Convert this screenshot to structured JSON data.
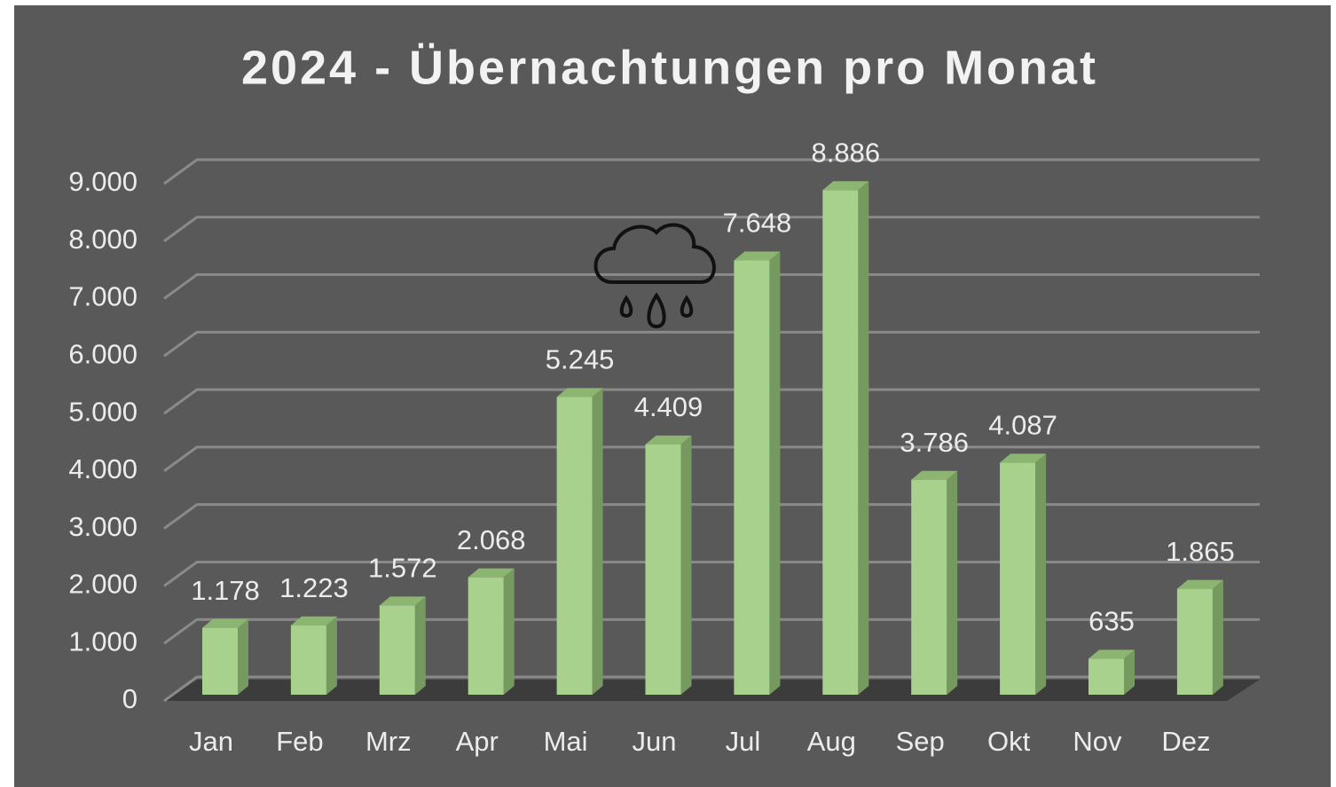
{
  "chart_data": {
    "type": "bar",
    "title": "2024 - Übernachtungen pro Monat",
    "categories": [
      "Jan",
      "Feb",
      "Mrz",
      "Apr",
      "Mai",
      "Jun",
      "Jul",
      "Aug",
      "Sep",
      "Okt",
      "Nov",
      "Dez"
    ],
    "values": [
      1178,
      1223,
      1572,
      2068,
      5245,
      4409,
      7648,
      8886,
      3786,
      4087,
      635,
      1865
    ],
    "value_labels": [
      "1.178",
      "1.223",
      "1.572",
      "2.068",
      "5.245",
      "4.409",
      "7.648",
      "8.886",
      "3.786",
      "4.087",
      "635",
      "1.865"
    ],
    "color": "#a9d18e",
    "ylim": [
      0,
      9000
    ],
    "yticks": [
      0,
      {
        "value": 1000,
        "label": "1.000"
      },
      {
        "value": 2000,
        "label": "2.000"
      },
      {
        "value": 3000,
        "label": "3.000"
      },
      {
        "value": 4000,
        "label": "4.000"
      },
      {
        "value": 5000,
        "label": "5.000"
      },
      {
        "value": 6000,
        "label": "6.000"
      },
      {
        "value": 7000,
        "label": "7.000"
      },
      {
        "value": 8000,
        "label": "8.000"
      },
      {
        "value": 9000,
        "label": "9.000"
      }
    ],
    "grid": true
  }
}
